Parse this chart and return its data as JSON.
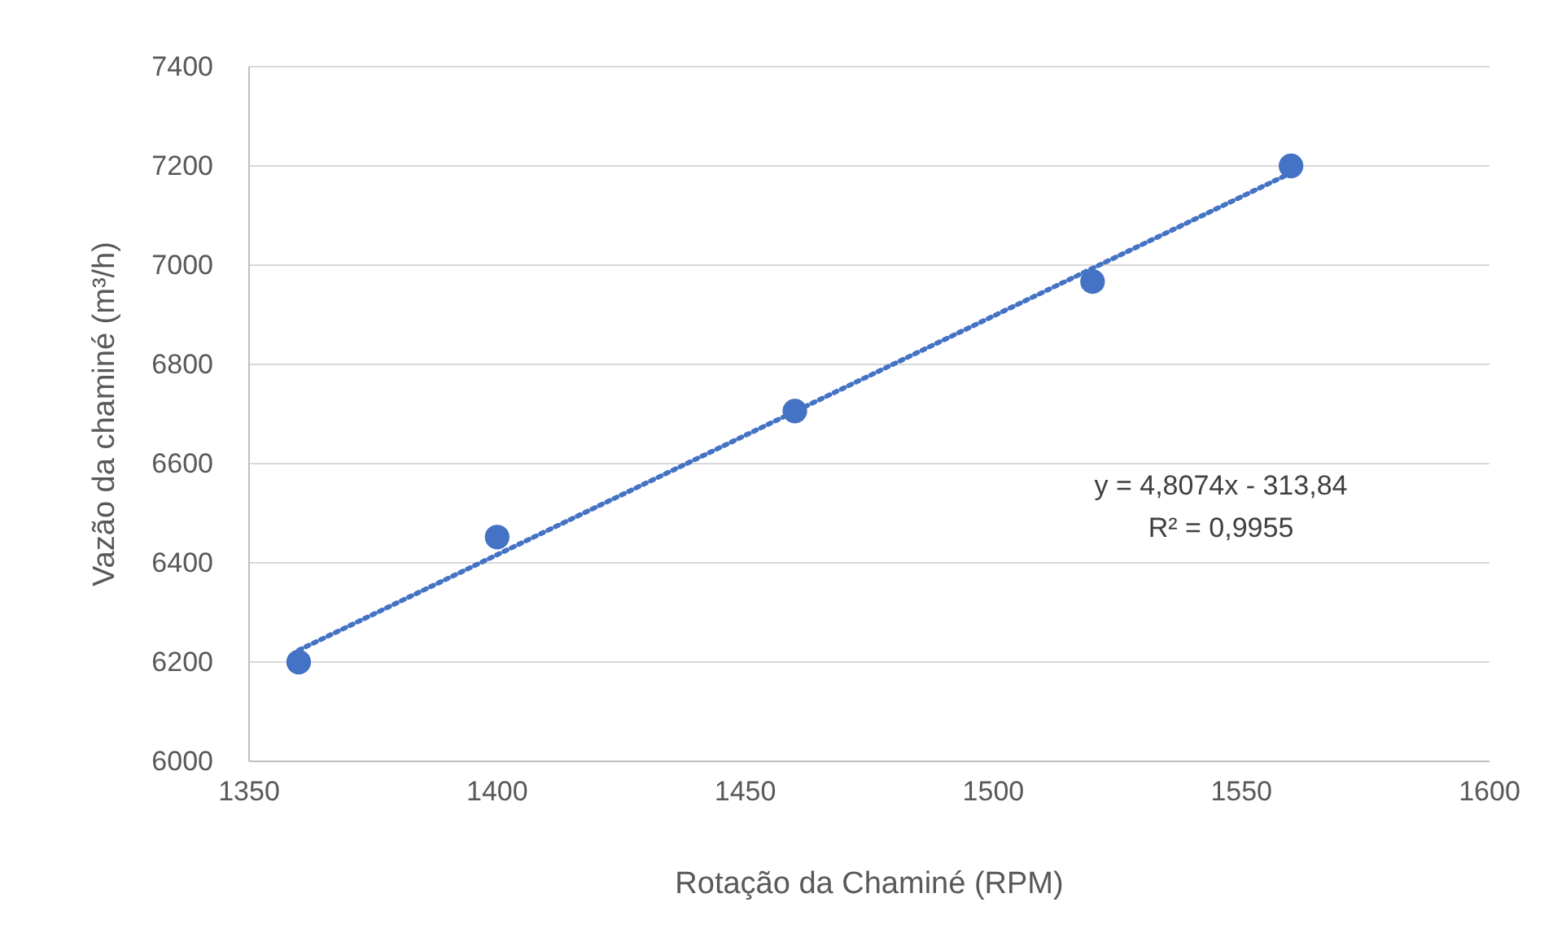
{
  "chart_data": {
    "type": "scatter",
    "xlabel": "Rotação da Chaminé (RPM)",
    "ylabel": "Vazão da chaminé (m³/h)",
    "xlim": [
      1350,
      1600
    ],
    "xticks": [
      1350,
      1400,
      1450,
      1500,
      1550,
      1600
    ],
    "ylim": [
      6000,
      7400
    ],
    "yticks": [
      6000,
      6200,
      6400,
      6600,
      6800,
      7000,
      7200,
      7400
    ],
    "grid": "y",
    "series": [
      {
        "marker": "circle",
        "color": "#4472c4",
        "x": [
          1360,
          1400,
          1460,
          1520,
          1560
        ],
        "values": [
          6200,
          6452,
          6706,
          6967,
          7200
        ]
      },
      {
        "type": "line",
        "line_style": "dotted",
        "color": "#4472c4",
        "x": [
          1360,
          1560
        ],
        "values": [
          6224,
          7186
        ]
      }
    ],
    "annotations": [
      "y = 4,8074x - 313,84",
      "R² = 0,9955"
    ]
  }
}
